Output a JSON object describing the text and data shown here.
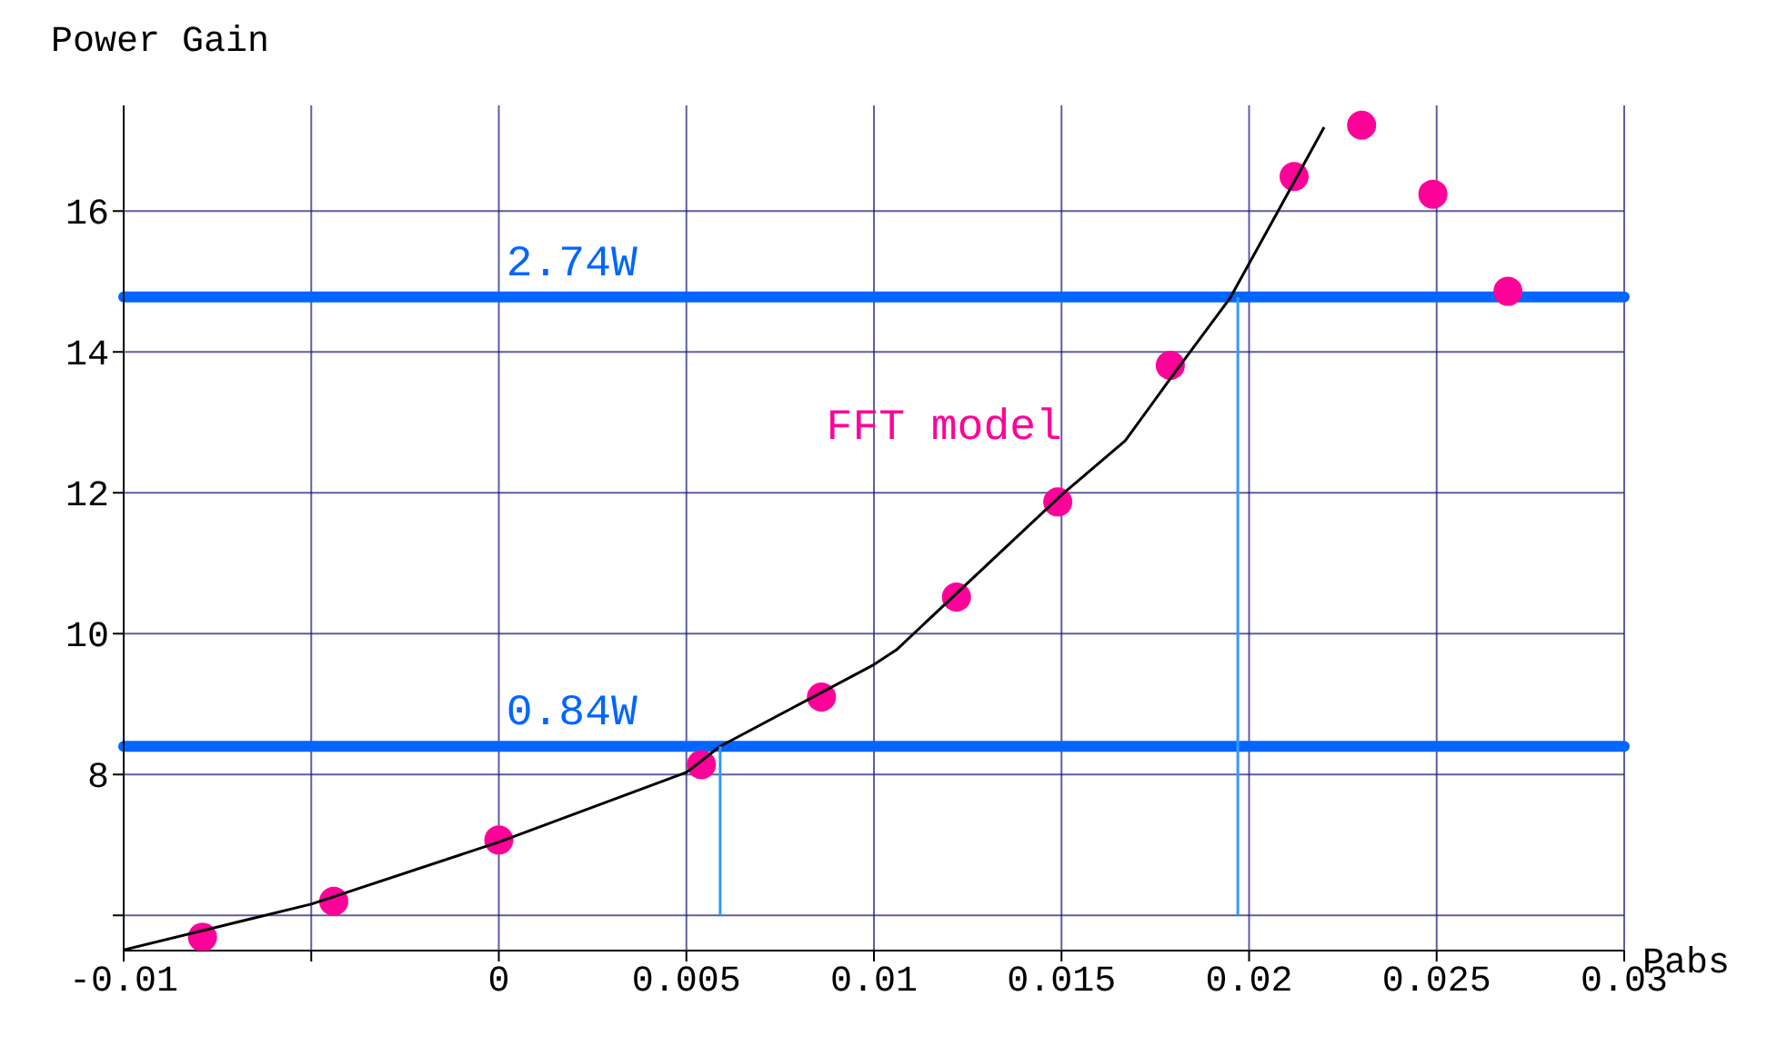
{
  "chart_data": {
    "type": "scatter",
    "xlabel": "Pabs",
    "ylabel": "Power Gain",
    "xlim": [
      -0.01,
      0.03
    ],
    "ylim": [
      5.5,
      17.5
    ],
    "xticks": [
      -0.01,
      {
        "value": -0.005,
        "label": null
      },
      0,
      0.005,
      0.01,
      0.015,
      0.02,
      0.025,
      0.03
    ],
    "yticks": [
      {
        "value": 6,
        "label": null
      },
      8,
      10,
      12,
      14,
      16
    ],
    "grid": true,
    "marker": "circle",
    "series": [
      {
        "name": "FFT model",
        "color": "#ff0099",
        "x": [
          -0.0079,
          -0.0044,
          0,
          0.0054,
          0.0086,
          0.0122,
          0.0149,
          0.0179,
          0.0212,
          0.023,
          0.0249,
          0.0269
        ],
        "values": [
          5.69,
          6.2,
          7.07,
          8.14,
          9.1,
          10.52,
          11.87,
          13.81,
          16.49,
          17.22,
          16.24,
          14.86
        ]
      },
      {
        "type": "line",
        "color": "#000000",
        "marker": "none",
        "x": [
          -0.01,
          -0.005,
          0,
          0.005,
          0.0059,
          0.01,
          0.0106,
          0.015,
          0.0167,
          0.0179,
          0.0195,
          0.0207,
          0.022
        ],
        "values": [
          5.51,
          6.16,
          7.04,
          8.03,
          8.4,
          9.56,
          9.77,
          11.97,
          12.74,
          13.62,
          14.77,
          15.93,
          17.19
        ]
      },
      {
        "type": "line",
        "color": "#3399ff",
        "marker": "none",
        "x": [
          0.0059,
          0.0059
        ],
        "values": [
          6,
          8.4
        ]
      },
      {
        "type": "line",
        "color": "#3399ff",
        "marker": "none",
        "x": [
          0.0197,
          0.0197
        ],
        "values": [
          6,
          14.78
        ]
      }
    ],
    "ref_lines": [
      {
        "axis": "y",
        "value": 8.4,
        "label": "0.84W",
        "color": "#0066ff"
      },
      {
        "axis": "y",
        "value": 14.78,
        "label": "2.74W",
        "color": "#0066ff"
      }
    ]
  }
}
